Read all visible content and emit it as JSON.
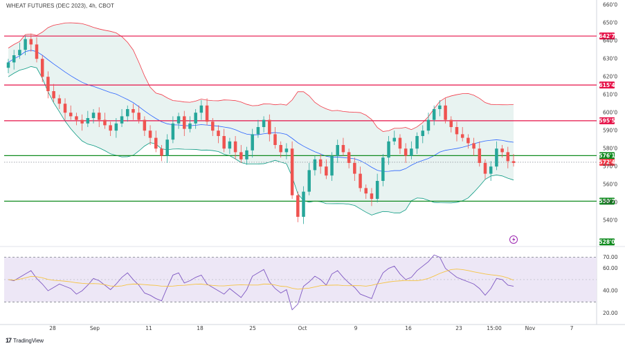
{
  "header": {
    "title": "WHEAT FUTURES (DEC 2023), 4h, CBOT"
  },
  "footer": {
    "brand": "TradingView"
  },
  "colors": {
    "bull": "#26a69a",
    "bear": "#ef5350",
    "band": "#e8f3f1",
    "upper_band": "#f23645",
    "lower_band": "#089981",
    "mid_band": "#2962ff",
    "resistance": "#e60f46",
    "support": "#0f8a1e",
    "rsi_line": "#7e57c2",
    "rsi_ma": "#f5c342",
    "rsi_zone": "#ede7f6"
  },
  "chart_data": [
    {
      "type": "candlestick",
      "title": "WHEAT FUTURES (DEC 2023), 4h, CBOT",
      "y_tick_labels": [
        "660'0",
        "650'0",
        "640'0",
        "630'0",
        "620'0",
        "610'0",
        "600'0",
        "590'0",
        "580'0",
        "570'0",
        "560'0",
        "550'0",
        "540'0"
      ],
      "x_tick_labels": [
        "28",
        "Sep",
        "11",
        "18",
        "25",
        "Oct",
        "9",
        "16",
        "23",
        "15:00",
        "Nov",
        "7"
      ],
      "ylim": [
        527,
        662
      ],
      "horizontal_levels": [
        {
          "value": 642.7,
          "label": "642'7",
          "kind": "resistance"
        },
        {
          "value": 615.4,
          "label": "615'4",
          "kind": "resistance"
        },
        {
          "value": 595.5,
          "label": "595'5",
          "kind": "resistance"
        },
        {
          "value": 576.1,
          "label": "576'1",
          "kind": "support"
        },
        {
          "value": 550.7,
          "label": "550'7",
          "kind": "support"
        },
        {
          "value": 528.0,
          "label": "528'0",
          "kind": "support"
        }
      ],
      "last_price": {
        "value": 572.4,
        "label": "572'4"
      },
      "close_series": [
        628,
        632,
        635,
        641,
        638,
        630,
        620,
        612,
        608,
        605,
        600,
        598,
        596,
        594,
        597,
        600,
        596,
        593,
        590,
        594,
        598,
        602,
        600,
        596,
        590,
        586,
        580,
        576,
        585,
        594,
        598,
        591,
        594,
        600,
        604,
        595,
        590,
        587,
        580,
        584,
        578,
        574,
        579,
        588,
        592,
        596,
        588,
        582,
        578,
        580,
        554,
        542,
        556,
        568,
        574,
        570,
        565,
        576,
        582,
        578,
        572,
        566,
        558,
        555,
        552,
        562,
        575,
        584,
        586,
        580,
        576,
        580,
        587,
        590,
        596,
        602,
        604,
        596,
        592,
        588,
        586,
        583,
        580,
        572,
        566,
        570,
        580,
        578,
        573,
        572
      ],
      "bollinger": {
        "period": 20,
        "stddev": 2
      }
    },
    {
      "type": "line",
      "title": "RSI",
      "y_tick_labels": [
        "70.00",
        "60.00",
        "40.00",
        "20.00"
      ],
      "ylim": [
        16,
        74
      ],
      "levels": [
        70,
        30
      ],
      "series_rsi": [
        50,
        49,
        52,
        55,
        58,
        51,
        46,
        40,
        43,
        46,
        44,
        42,
        37,
        40,
        45,
        51,
        49,
        45,
        41,
        46,
        52,
        56,
        50,
        45,
        38,
        36,
        33,
        31,
        43,
        54,
        56,
        47,
        49,
        52,
        54,
        46,
        43,
        40,
        37,
        42,
        38,
        34,
        41,
        53,
        56,
        59,
        48,
        42,
        38,
        41,
        23,
        28,
        44,
        48,
        53,
        50,
        45,
        55,
        58,
        52,
        47,
        43,
        37,
        35,
        33,
        46,
        56,
        60,
        62,
        55,
        50,
        52,
        58,
        62,
        66,
        72,
        70,
        60,
        56,
        52,
        50,
        48,
        46,
        42,
        36,
        42,
        51,
        50,
        45,
        44
      ]
    }
  ]
}
